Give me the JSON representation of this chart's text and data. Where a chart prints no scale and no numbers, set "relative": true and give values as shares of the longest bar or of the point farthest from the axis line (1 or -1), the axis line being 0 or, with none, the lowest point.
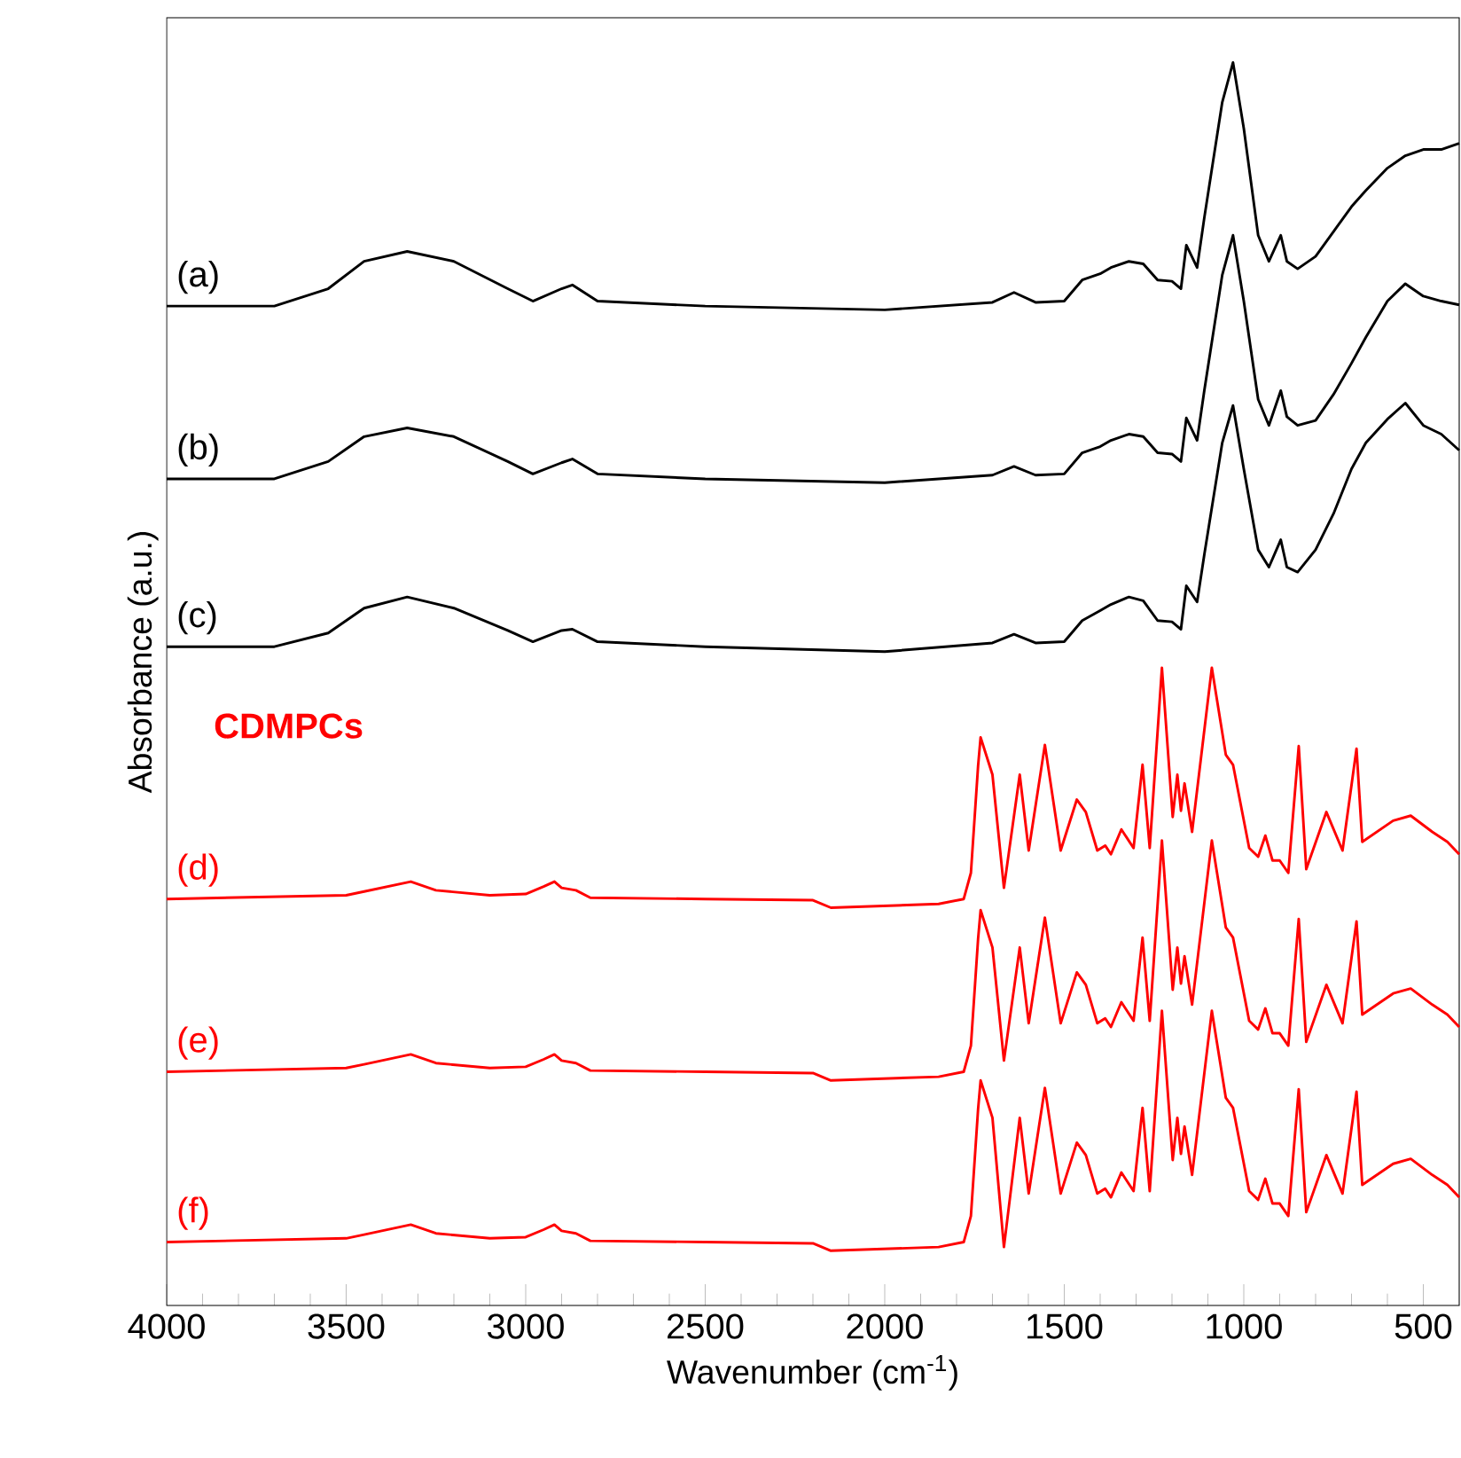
{
  "chart_data": {
    "type": "line",
    "xlabel": "Wavenumber (cm$^{-1}$)",
    "ylabel": "Absorbance (a.u.)",
    "relative": true,
    "xlim": [
      4000,
      400
    ],
    "xticks": [
      4000,
      3500,
      3000,
      2500,
      2000,
      1500,
      1000,
      500
    ],
    "legend": false,
    "grid": false,
    "annotations": [
      "CDMPCs"
    ],
    "series": [
      {
        "name": "(a)",
        "color": "#000000",
        "x": [
          4000,
          3700,
          3550,
          3450,
          3330,
          3200,
          3050,
          2980,
          2900,
          2870,
          2800,
          2500,
          2000,
          1700,
          1640,
          1580,
          1500,
          1450,
          1400,
          1370,
          1320,
          1280,
          1240,
          1200,
          1175,
          1160,
          1130,
          1110,
          1060,
          1030,
          1000,
          960,
          930,
          897,
          880,
          850,
          800,
          750,
          700,
          660,
          600,
          550,
          500,
          450,
          400
        ],
        "values": [
          0.804,
          0.804,
          0.818,
          0.84,
          0.848,
          0.84,
          0.818,
          0.808,
          0.818,
          0.821,
          0.808,
          0.804,
          0.801,
          0.807,
          0.815,
          0.807,
          0.808,
          0.825,
          0.83,
          0.835,
          0.84,
          0.838,
          0.825,
          0.824,
          0.818,
          0.853,
          0.835,
          0.875,
          0.968,
          1.0,
          0.947,
          0.861,
          0.84,
          0.861,
          0.84,
          0.834,
          0.844,
          0.864,
          0.884,
          0.897,
          0.915,
          0.925,
          0.93,
          0.93,
          0.935
        ]
      },
      {
        "name": "(b)",
        "color": "#000000",
        "x": [
          4000,
          3700,
          3550,
          3450,
          3330,
          3200,
          3050,
          2980,
          2900,
          2870,
          2800,
          2500,
          2000,
          1700,
          1640,
          1580,
          1500,
          1450,
          1400,
          1370,
          1320,
          1280,
          1240,
          1200,
          1175,
          1160,
          1130,
          1110,
          1060,
          1030,
          1000,
          960,
          930,
          897,
          880,
          850,
          800,
          750,
          700,
          660,
          600,
          550,
          500,
          450,
          400
        ],
        "values": [
          0.665,
          0.665,
          0.679,
          0.699,
          0.706,
          0.699,
          0.679,
          0.669,
          0.678,
          0.681,
          0.669,
          0.665,
          0.662,
          0.668,
          0.675,
          0.668,
          0.669,
          0.686,
          0.691,
          0.696,
          0.701,
          0.699,
          0.686,
          0.685,
          0.679,
          0.714,
          0.696,
          0.736,
          0.829,
          0.861,
          0.808,
          0.729,
          0.708,
          0.736,
          0.715,
          0.708,
          0.712,
          0.733,
          0.758,
          0.779,
          0.808,
          0.822,
          0.812,
          0.808,
          0.805
        ]
      },
      {
        "name": "(c)",
        "color": "#000000",
        "x": [
          4000,
          3700,
          3550,
          3450,
          3330,
          3200,
          3050,
          2980,
          2900,
          2870,
          2800,
          2500,
          2000,
          1700,
          1640,
          1580,
          1500,
          1450,
          1400,
          1370,
          1320,
          1280,
          1240,
          1200,
          1175,
          1160,
          1130,
          1110,
          1060,
          1030,
          1000,
          960,
          930,
          897,
          880,
          850,
          800,
          750,
          700,
          660,
          600,
          550,
          500,
          450,
          400
        ],
        "values": [
          0.53,
          0.53,
          0.541,
          0.561,
          0.57,
          0.561,
          0.543,
          0.534,
          0.543,
          0.544,
          0.534,
          0.53,
          0.526,
          0.533,
          0.54,
          0.533,
          0.534,
          0.551,
          0.559,
          0.564,
          0.57,
          0.567,
          0.551,
          0.55,
          0.544,
          0.579,
          0.566,
          0.604,
          0.694,
          0.724,
          0.673,
          0.608,
          0.594,
          0.616,
          0.594,
          0.59,
          0.608,
          0.637,
          0.673,
          0.694,
          0.713,
          0.726,
          0.708,
          0.701,
          0.688
        ]
      },
      {
        "name": "(d)",
        "color": "#ff0000",
        "x": [
          4000,
          3500,
          3450,
          3320,
          3250,
          3100,
          3000,
          2950,
          2920,
          2900,
          2860,
          2820,
          2500,
          2200,
          2150,
          1850,
          1780,
          1760,
          1740,
          1733,
          1700,
          1668,
          1624,
          1599,
          1554,
          1510,
          1465,
          1440,
          1408,
          1386,
          1370,
          1341,
          1307,
          1282,
          1262,
          1228,
          1198,
          1185,
          1175,
          1165,
          1144,
          1089,
          1050,
          1030,
          985,
          960,
          940,
          920,
          900,
          876,
          847,
          826,
          770,
          725,
          686,
          670,
          584,
          535,
          475,
          433,
          400
        ],
        "values": [
          0.327,
          0.33,
          0.333,
          0.341,
          0.334,
          0.33,
          0.331,
          0.337,
          0.341,
          0.336,
          0.334,
          0.328,
          0.327,
          0.326,
          0.32,
          0.323,
          0.327,
          0.348,
          0.434,
          0.457,
          0.427,
          0.336,
          0.427,
          0.366,
          0.451,
          0.366,
          0.407,
          0.397,
          0.366,
          0.37,
          0.363,
          0.383,
          0.368,
          0.435,
          0.368,
          0.513,
          0.393,
          0.427,
          0.398,
          0.42,
          0.381,
          0.513,
          0.443,
          0.435,
          0.368,
          0.361,
          0.378,
          0.358,
          0.358,
          0.348,
          0.45,
          0.351,
          0.397,
          0.366,
          0.448,
          0.373,
          0.39,
          0.394,
          0.381,
          0.373,
          0.363
        ]
      },
      {
        "name": "(e)",
        "color": "#ff0000",
        "x": [
          4000,
          3500,
          3450,
          3320,
          3250,
          3100,
          3000,
          2950,
          2920,
          2900,
          2860,
          2820,
          2500,
          2200,
          2150,
          1850,
          1780,
          1760,
          1740,
          1733,
          1700,
          1668,
          1624,
          1599,
          1554,
          1510,
          1465,
          1440,
          1408,
          1386,
          1370,
          1341,
          1307,
          1282,
          1262,
          1228,
          1198,
          1185,
          1175,
          1165,
          1144,
          1089,
          1050,
          1030,
          985,
          960,
          940,
          920,
          900,
          876,
          847,
          826,
          770,
          725,
          686,
          670,
          584,
          535,
          475,
          433,
          400
        ],
        "values": [
          0.188,
          0.191,
          0.194,
          0.202,
          0.195,
          0.191,
          0.192,
          0.198,
          0.202,
          0.197,
          0.195,
          0.189,
          0.188,
          0.187,
          0.181,
          0.184,
          0.188,
          0.209,
          0.295,
          0.318,
          0.288,
          0.197,
          0.288,
          0.227,
          0.312,
          0.227,
          0.268,
          0.258,
          0.227,
          0.231,
          0.224,
          0.244,
          0.229,
          0.296,
          0.229,
          0.374,
          0.254,
          0.288,
          0.259,
          0.281,
          0.242,
          0.374,
          0.304,
          0.296,
          0.229,
          0.222,
          0.239,
          0.219,
          0.219,
          0.209,
          0.311,
          0.212,
          0.258,
          0.227,
          0.309,
          0.234,
          0.251,
          0.255,
          0.242,
          0.234,
          0.224
        ]
      },
      {
        "name": "(f)",
        "color": "#ff0000",
        "x": [
          4000,
          3500,
          3450,
          3320,
          3250,
          3100,
          3000,
          2950,
          2920,
          2900,
          2860,
          2820,
          2500,
          2200,
          2150,
          1850,
          1780,
          1760,
          1740,
          1733,
          1700,
          1668,
          1624,
          1599,
          1554,
          1510,
          1465,
          1440,
          1408,
          1386,
          1370,
          1341,
          1307,
          1282,
          1262,
          1228,
          1198,
          1185,
          1175,
          1165,
          1144,
          1089,
          1050,
          1030,
          985,
          960,
          940,
          920,
          900,
          876,
          847,
          826,
          770,
          725,
          686,
          670,
          584,
          535,
          475,
          433,
          400
        ],
        "values": [
          0.051,
          0.054,
          0.057,
          0.065,
          0.058,
          0.054,
          0.055,
          0.061,
          0.065,
          0.06,
          0.058,
          0.052,
          0.051,
          0.05,
          0.044,
          0.047,
          0.051,
          0.072,
          0.158,
          0.181,
          0.151,
          0.047,
          0.151,
          0.09,
          0.175,
          0.09,
          0.131,
          0.121,
          0.09,
          0.094,
          0.087,
          0.107,
          0.092,
          0.159,
          0.092,
          0.237,
          0.117,
          0.151,
          0.122,
          0.144,
          0.105,
          0.237,
          0.167,
          0.159,
          0.092,
          0.085,
          0.102,
          0.082,
          0.082,
          0.072,
          0.174,
          0.075,
          0.121,
          0.09,
          0.172,
          0.097,
          0.114,
          0.118,
          0.105,
          0.097,
          0.087
        ]
      }
    ]
  }
}
